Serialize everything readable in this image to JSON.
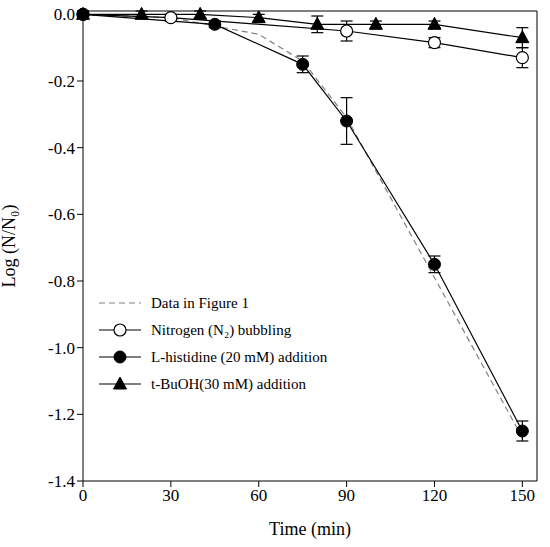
{
  "chart_data": {
    "type": "line",
    "x_label": "Time (min)",
    "y_label": "Log (N/N₀)",
    "xlim": [
      0,
      155
    ],
    "xticks": [
      0,
      30,
      60,
      90,
      120,
      150
    ],
    "ylim": [
      -1.4,
      0
    ],
    "yticks": [
      {
        "value": 0,
        "label": "0.0"
      },
      -0.2,
      -0.4,
      -0.6,
      -0.8,
      {
        "value": -1,
        "label": "-1.0"
      },
      -1.2,
      -1.4
    ],
    "legend": "lower left",
    "series": [
      {
        "name": "Data in Figure 1",
        "color": "#808080",
        "line_style": "dashed",
        "marker": "none",
        "x": [
          0,
          30,
          60,
          75,
          90,
          120,
          150
        ],
        "values": [
          0,
          -0.01,
          -0.06,
          -0.14,
          -0.31,
          -0.79,
          -1.27
        ]
      },
      {
        "name": "Nitrogen (N₂) bubbling",
        "color": "#000000",
        "line_style": "solid",
        "marker": "circle-open",
        "x": [
          0,
          30,
          90,
          120,
          150
        ],
        "values": [
          0,
          -0.01,
          -0.05,
          -0.085,
          -0.13
        ],
        "errors": [
          0.01,
          0.01,
          0.03,
          0.015,
          0.03
        ]
      },
      {
        "name": "L-histidine (20 mM) addition",
        "color": "#000000",
        "line_style": "solid",
        "marker": "circle",
        "x": [
          0,
          45,
          75,
          90,
          120,
          150
        ],
        "values": [
          0,
          -0.03,
          -0.15,
          -0.32,
          -0.75,
          -1.25
        ],
        "errors": [
          0.01,
          0.01,
          0.025,
          0.07,
          0.025,
          0.03
        ]
      },
      {
        "name": "t-BuOH(30 mM) addition",
        "color": "#000000",
        "line_style": "solid",
        "marker": "triangle",
        "x": [
          0,
          20,
          40,
          60,
          80,
          100,
          120,
          150
        ],
        "values": [
          0,
          0,
          0,
          -0.01,
          -0.03,
          -0.03,
          -0.03,
          -0.07
        ],
        "errors": [
          0.01,
          0.01,
          0.01,
          0.01,
          0.025,
          0.01,
          0.01,
          0.03
        ]
      }
    ]
  }
}
